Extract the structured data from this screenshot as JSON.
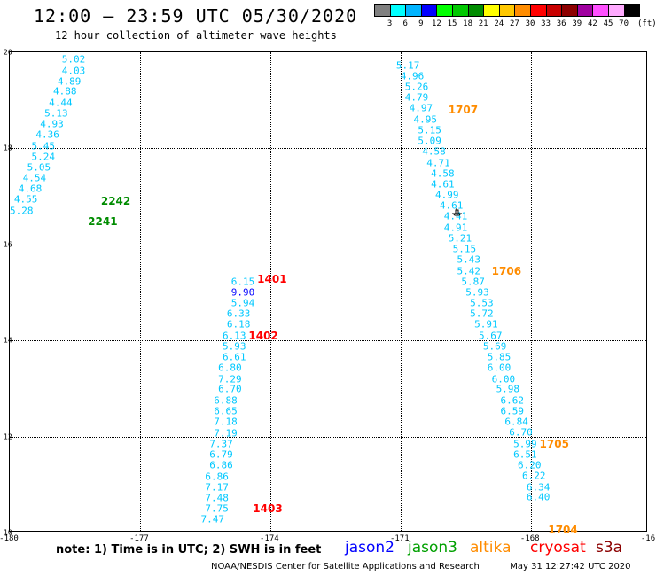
{
  "header": {
    "title": "12:00 — 23:59 UTC 05/30/2020",
    "subtitle": "12 hour collection of altimeter wave heights"
  },
  "colorbar": {
    "colors": [
      "#808080",
      "#00ffff",
      "#00b4ff",
      "#0000ff",
      "#00ff00",
      "#00c800",
      "#008c00",
      "#ffff00",
      "#ffc800",
      "#ff8c00",
      "#ff0000",
      "#c80000",
      "#8c0000",
      "#a000a0",
      "#ff50ff",
      "#ffaaff",
      "#000000"
    ],
    "labels": [
      "3",
      "6",
      "9",
      "12",
      "15",
      "18",
      "21",
      "24",
      "27",
      "30",
      "33",
      "36",
      "39",
      "42",
      "45",
      "70"
    ],
    "unit": "(ft)"
  },
  "axes": {
    "lat_labels": [
      "20",
      "18",
      "16",
      "14",
      "12",
      "10"
    ],
    "lon_labels": [
      "-180",
      "-177",
      "-174",
      "-171",
      "-168",
      "-16"
    ]
  },
  "chart_data": {
    "type": "scatter",
    "xlabel": "",
    "ylabel": "",
    "xlim": [
      -180,
      -165.3
    ],
    "ylim": [
      10,
      20
    ],
    "grid": true,
    "tracks": [
      {
        "color": "#00c8ff",
        "points": [
          {
            "lon": -178.8,
            "lat": 19.85,
            "v": "5.02"
          },
          {
            "lon": -178.8,
            "lat": 19.62,
            "v": "4.03"
          },
          {
            "lon": -178.9,
            "lat": 19.4,
            "v": "4.89"
          },
          {
            "lon": -179.0,
            "lat": 19.18,
            "v": "4.88"
          },
          {
            "lon": -179.1,
            "lat": 18.95,
            "v": "4.44"
          },
          {
            "lon": -179.2,
            "lat": 18.72,
            "v": "5.13"
          },
          {
            "lon": -179.3,
            "lat": 18.5,
            "v": "4.93"
          },
          {
            "lon": -179.4,
            "lat": 18.28,
            "v": "4.36"
          },
          {
            "lon": -179.5,
            "lat": 18.05,
            "v": "5.45"
          },
          {
            "lon": -179.5,
            "lat": 17.83,
            "v": "5.24"
          },
          {
            "lon": -179.6,
            "lat": 17.6,
            "v": "5.05"
          },
          {
            "lon": -179.7,
            "lat": 17.38,
            "v": "4.54"
          },
          {
            "lon": -179.8,
            "lat": 17.15,
            "v": "4.68"
          },
          {
            "lon": -179.9,
            "lat": 16.93,
            "v": "4.55"
          },
          {
            "lon": -180.0,
            "lat": 16.7,
            "v": "5.28"
          }
        ]
      },
      {
        "color": "#00c8ff",
        "points": [
          {
            "lon": -174.9,
            "lat": 15.22,
            "v": "6.15"
          },
          {
            "lon": -174.9,
            "lat": 14.78,
            "v": "5.94"
          },
          {
            "lon": -175.0,
            "lat": 14.56,
            "v": "6.33"
          },
          {
            "lon": -175.0,
            "lat": 14.33,
            "v": "6.18"
          },
          {
            "lon": -175.1,
            "lat": 14.1,
            "v": "6.13"
          },
          {
            "lon": -175.1,
            "lat": 13.88,
            "v": "5.93"
          },
          {
            "lon": -175.1,
            "lat": 13.65,
            "v": "6.61"
          },
          {
            "lon": -175.2,
            "lat": 13.43,
            "v": "6.80"
          },
          {
            "lon": -175.2,
            "lat": 13.2,
            "v": "7.29"
          },
          {
            "lon": -175.2,
            "lat": 12.98,
            "v": "6.70"
          },
          {
            "lon": -175.3,
            "lat": 12.75,
            "v": "6.88"
          },
          {
            "lon": -175.3,
            "lat": 12.52,
            "v": "6.65"
          },
          {
            "lon": -175.3,
            "lat": 12.3,
            "v": "7.18"
          },
          {
            "lon": -175.3,
            "lat": 12.07,
            "v": "7.19"
          },
          {
            "lon": -175.4,
            "lat": 11.85,
            "v": "7.37"
          },
          {
            "lon": -175.4,
            "lat": 11.62,
            "v": "6.79"
          },
          {
            "lon": -175.4,
            "lat": 11.4,
            "v": "6.86"
          },
          {
            "lon": -175.5,
            "lat": 11.17,
            "v": "6.86"
          },
          {
            "lon": -175.5,
            "lat": 10.95,
            "v": "7.17"
          },
          {
            "lon": -175.5,
            "lat": 10.72,
            "v": "7.48"
          },
          {
            "lon": -175.5,
            "lat": 10.5,
            "v": "7.75"
          },
          {
            "lon": -175.6,
            "lat": 10.27,
            "v": "7.47"
          }
        ]
      },
      {
        "color": "#0000ff",
        "points": [
          {
            "lon": -174.9,
            "lat": 15.0,
            "v": "9.90"
          }
        ]
      },
      {
        "color": "#00c8ff",
        "points": [
          {
            "lon": -171.1,
            "lat": 19.73,
            "v": "5.17"
          },
          {
            "lon": -171.0,
            "lat": 19.5,
            "v": "4.96"
          },
          {
            "lon": -170.9,
            "lat": 19.28,
            "v": "5.26"
          },
          {
            "lon": -170.9,
            "lat": 19.05,
            "v": "4.79"
          },
          {
            "lon": -170.8,
            "lat": 18.83,
            "v": "4.97"
          },
          {
            "lon": -170.7,
            "lat": 18.6,
            "v": "4.95"
          },
          {
            "lon": -170.6,
            "lat": 18.38,
            "v": "5.15"
          },
          {
            "lon": -170.6,
            "lat": 18.15,
            "v": "5.09"
          },
          {
            "lon": -170.5,
            "lat": 17.93,
            "v": "4.58"
          },
          {
            "lon": -170.4,
            "lat": 17.7,
            "v": "4.71"
          },
          {
            "lon": -170.3,
            "lat": 17.48,
            "v": "4.58"
          },
          {
            "lon": -170.3,
            "lat": 17.25,
            "v": "4.61"
          },
          {
            "lon": -170.2,
            "lat": 17.03,
            "v": "4.99"
          },
          {
            "lon": -170.1,
            "lat": 16.8,
            "v": "4.61"
          },
          {
            "lon": -170.0,
            "lat": 16.58,
            "v": "4.41"
          },
          {
            "lon": -170.0,
            "lat": 16.35,
            "v": "4.91"
          },
          {
            "lon": -169.9,
            "lat": 16.13,
            "v": "5.21"
          },
          {
            "lon": -169.8,
            "lat": 15.9,
            "v": "5.15"
          },
          {
            "lon": -169.7,
            "lat": 15.68,
            "v": "5.43"
          },
          {
            "lon": -169.7,
            "lat": 15.45,
            "v": "5.42"
          },
          {
            "lon": -169.6,
            "lat": 15.23,
            "v": "5.87"
          },
          {
            "lon": -169.5,
            "lat": 15.0,
            "v": "5.93"
          },
          {
            "lon": -169.4,
            "lat": 14.78,
            "v": "5.53"
          },
          {
            "lon": -169.4,
            "lat": 14.55,
            "v": "5.72"
          },
          {
            "lon": -169.3,
            "lat": 14.33,
            "v": "5.91"
          },
          {
            "lon": -169.2,
            "lat": 14.1,
            "v": "5.67"
          },
          {
            "lon": -169.1,
            "lat": 13.88,
            "v": "5.69"
          },
          {
            "lon": -169.0,
            "lat": 13.65,
            "v": "5.85"
          },
          {
            "lon": -169.0,
            "lat": 13.43,
            "v": "6.00"
          },
          {
            "lon": -168.9,
            "lat": 13.2,
            "v": "6.00"
          },
          {
            "lon": -168.8,
            "lat": 12.98,
            "v": "5.98"
          },
          {
            "lon": -168.7,
            "lat": 12.75,
            "v": "6.62"
          },
          {
            "lon": -168.7,
            "lat": 12.53,
            "v": "6.59"
          },
          {
            "lon": -168.6,
            "lat": 12.3,
            "v": "6.84"
          },
          {
            "lon": -168.5,
            "lat": 12.08,
            "v": "6.70"
          },
          {
            "lon": -168.4,
            "lat": 11.85,
            "v": "5.99"
          },
          {
            "lon": -168.4,
            "lat": 11.63,
            "v": "6.51"
          },
          {
            "lon": -168.3,
            "lat": 11.4,
            "v": "6.20"
          },
          {
            "lon": -168.2,
            "lat": 11.18,
            "v": "6.22"
          },
          {
            "lon": -168.1,
            "lat": 10.95,
            "v": "6.34"
          },
          {
            "lon": -168.1,
            "lat": 10.73,
            "v": "6.40"
          }
        ]
      }
    ],
    "pass_labels": [
      {
        "lon": -177.9,
        "lat": 16.9,
        "text": "2242",
        "color": "#008c00"
      },
      {
        "lon": -178.2,
        "lat": 16.47,
        "text": "2241",
        "color": "#008c00"
      },
      {
        "lon": -174.3,
        "lat": 15.27,
        "text": "1401",
        "color": "#ff0000"
      },
      {
        "lon": -174.5,
        "lat": 14.1,
        "text": "1402",
        "color": "#ff0000"
      },
      {
        "lon": -174.4,
        "lat": 10.5,
        "text": "1403",
        "color": "#ff0000"
      },
      {
        "lon": -169.9,
        "lat": 18.8,
        "text": "1707",
        "color": "#ff8c00"
      },
      {
        "lon": -168.9,
        "lat": 15.45,
        "text": "1706",
        "color": "#ff8c00"
      },
      {
        "lon": -167.8,
        "lat": 11.85,
        "text": "1705",
        "color": "#ff8c00"
      },
      {
        "lon": -167.6,
        "lat": 10.05,
        "text": "1704",
        "color": "#ff8c00"
      }
    ]
  },
  "legend": {
    "note": "note:  1) Time is in UTC;  2) SWH is in feet",
    "sats": [
      {
        "name": "jason2",
        "color": "#0000ff"
      },
      {
        "name": "jason3",
        "color": "#00a000"
      },
      {
        "name": "altika",
        "color": "#ff8c00"
      },
      {
        "name": "cryosat",
        "color": "#ff0000"
      },
      {
        "name": "s3a",
        "color": "#8b0000"
      }
    ]
  },
  "footer": {
    "credit": "NOAA/NESDIS Center for Satellite Applications and Research",
    "timestamp": "May 31 12:27:42 UTC 2020"
  }
}
